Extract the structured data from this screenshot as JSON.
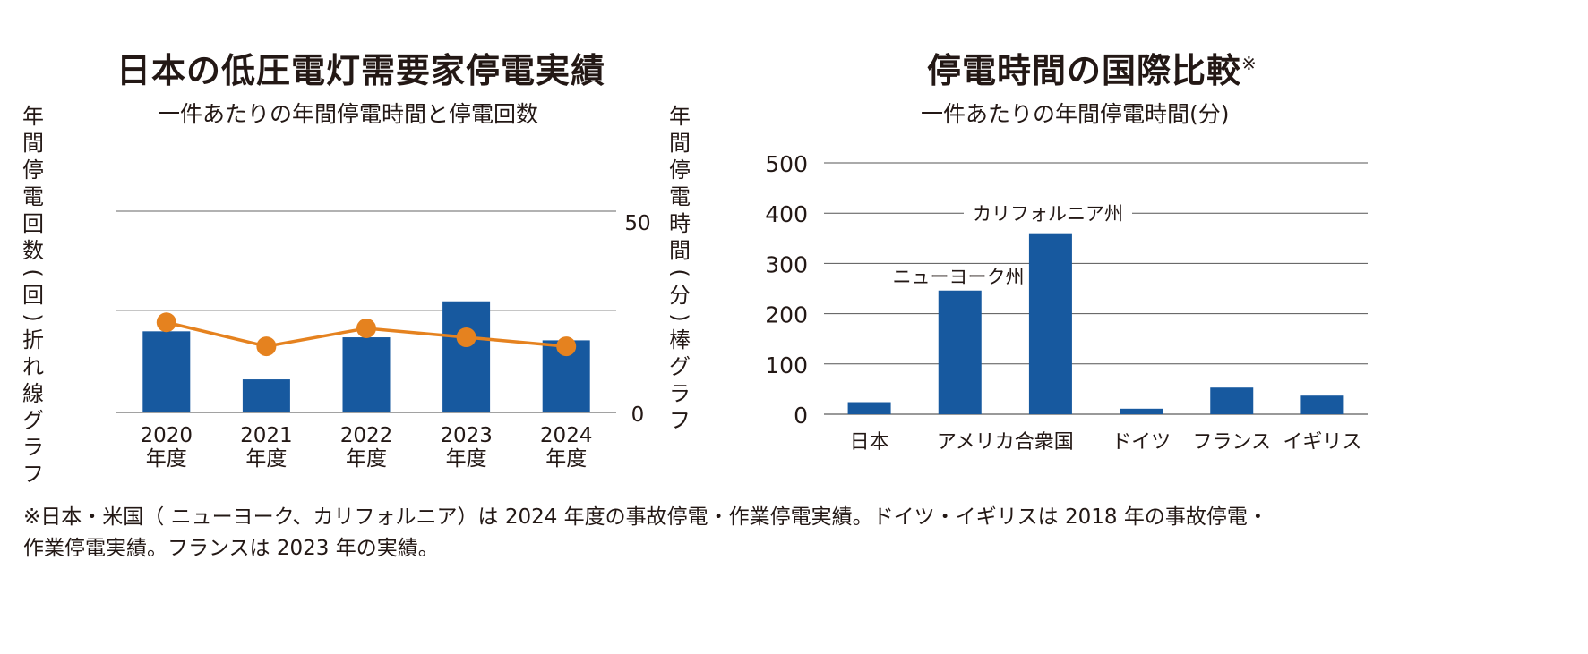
{
  "chart_data": [
    {
      "type": "bar",
      "title": "日本の低圧電灯需要家停電実績",
      "subtitle": "一件あたりの年間停電時間と停電回数",
      "left_axis_label": "年間停電回数(回)折れ線グラフ",
      "right_axis_label": "年間停電時間(分)棒グラフ",
      "categories": [
        "2020\n年度",
        "2021\n年度",
        "2022\n年度",
        "2023\n年度",
        "2024\n年度"
      ],
      "category_years": [
        "2020",
        "2021",
        "2022",
        "2023",
        "2024"
      ],
      "category_unit": "年度",
      "series": [
        {
          "type": "bar",
          "axis": "right",
          "values": [
            27,
            11,
            25,
            37,
            24
          ],
          "color": "#17599f"
        },
        {
          "type": "line",
          "axis": "left",
          "values": [
            0.3,
            0.22,
            0.28,
            0.25,
            0.22
          ],
          "color": "#e5821f"
        }
      ],
      "right_ylim": [
        0,
        67
      ],
      "left_ylim": [
        0,
        0.67
      ],
      "right_ticks": [
        "50",
        "0"
      ],
      "right_tick_values": [
        50,
        0
      ],
      "gridlines_right": [
        0,
        34,
        67
      ]
    },
    {
      "type": "bar",
      "title": "停電時間の国際比較",
      "title_mark": "※",
      "subtitle": "一件あたりの年間停電時間(分)",
      "categories": [
        "日本",
        "アメリカ合衆国",
        "アメリカ合衆国",
        "ドイツ",
        "フランス",
        "イギリス"
      ],
      "x_group_labels": [
        "日本",
        "アメリカ合衆国",
        "ドイツ",
        "フランス",
        "イギリス"
      ],
      "values": [
        24,
        246,
        360,
        11,
        53,
        37
      ],
      "bar_annotations": [
        "",
        "ニューヨーク州",
        "カリフォルニア州",
        "",
        "",
        ""
      ],
      "ylim": [
        0,
        500
      ],
      "y_ticks": [
        500,
        400,
        300,
        200,
        100,
        0
      ],
      "color": "#17599f",
      "grid": true
    }
  ],
  "footnote": {
    "line1": "※日本・米国（ ニューヨーク、カリフォルニア）は 2024 年度の事故停電・作業停電実績。ドイツ・イギリスは 2018 年の事故停電・",
    "line2": "作業停電実績。フランスは 2023 年の実績。"
  }
}
